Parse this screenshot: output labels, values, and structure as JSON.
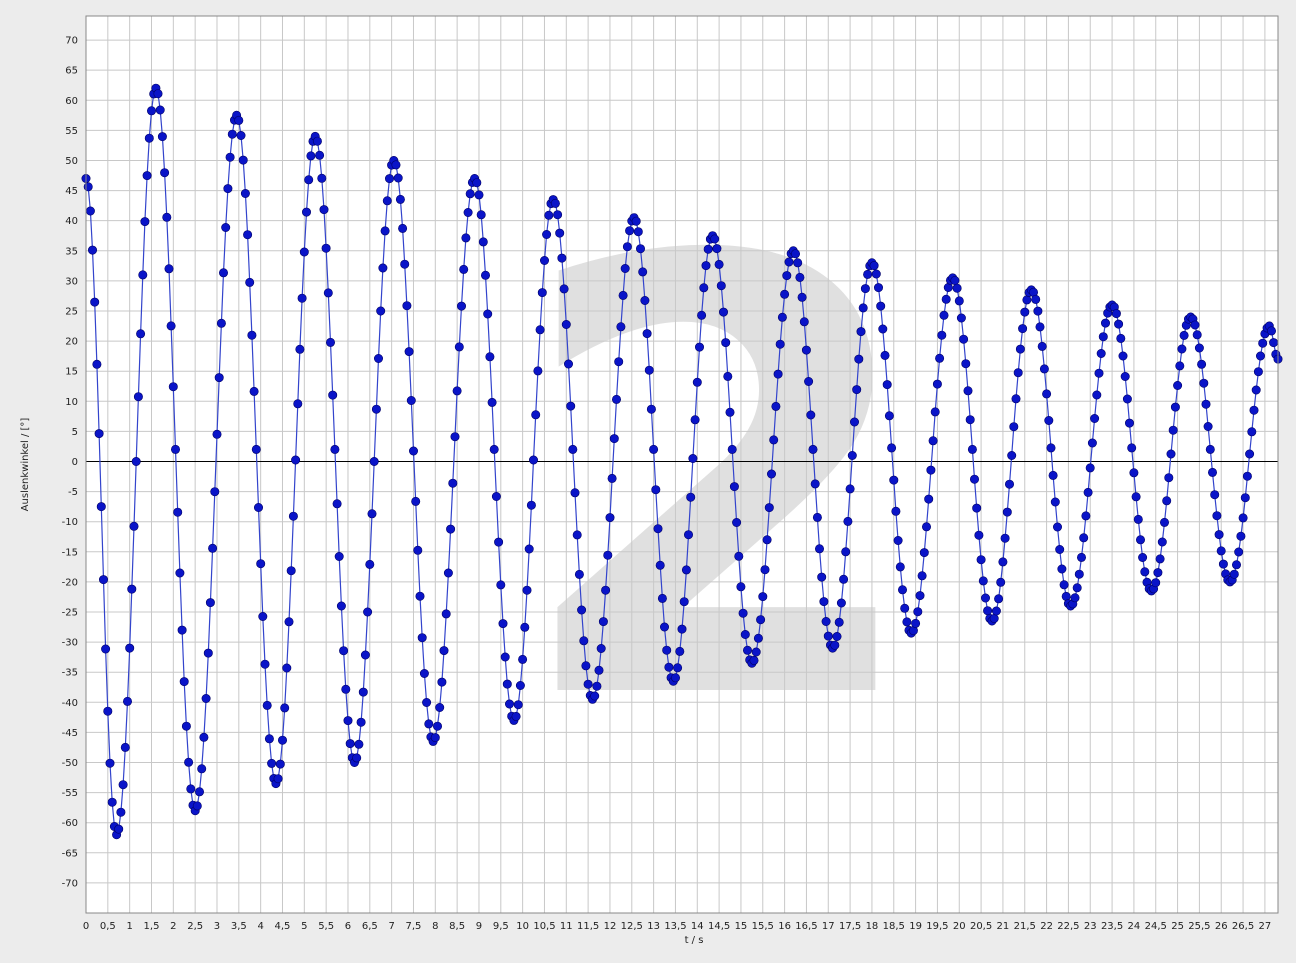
{
  "chart_data": {
    "type": "scatter",
    "title": "",
    "xlabel": "t / s",
    "ylabel": "Auslenkwinkel / [°]",
    "watermark": "2",
    "xlim": [
      0,
      27.3
    ],
    "ylim": [
      -75,
      74
    ],
    "x_tick_labels": [
      "0",
      "0,5",
      "1",
      "1,5",
      "2",
      "2,5",
      "3",
      "3,5",
      "4",
      "4,5",
      "5",
      "5,5",
      "6",
      "6,5",
      "7",
      "7,5",
      "8",
      "8,5",
      "9",
      "9,5",
      "10",
      "10,5",
      "11",
      "11,5",
      "12",
      "12,5",
      "13",
      "13,5",
      "14",
      "14,5",
      "15",
      "15,5",
      "16",
      "16,5",
      "17",
      "17,5",
      "18",
      "18,5",
      "19",
      "19,5",
      "20",
      "20,5",
      "21",
      "21,5",
      "22",
      "22,5",
      "23",
      "23,5",
      "24",
      "24,5",
      "25",
      "25,5",
      "26",
      "26,5",
      "27"
    ],
    "y_tick_labels": [
      "70",
      "65",
      "60",
      "55",
      "50",
      "45",
      "40",
      "35",
      "30",
      "25",
      "20",
      "15",
      "10",
      "5",
      "0",
      "-5",
      "-10",
      "-15",
      "-20",
      "-25",
      "-30",
      "-35",
      "-40",
      "-45",
      "-50",
      "-55",
      "-60",
      "-65",
      "-70"
    ],
    "grid": true,
    "legend": "none",
    "series": [
      {
        "color": "#0000cc",
        "line_color": "#3344cc",
        "marker_color": "#0a14c8",
        "sampling_interval_s": 0.05,
        "model": {
          "description": "damped oscillation fitted to extrema",
          "offset": 0.5,
          "period": 1.82,
          "phase_s": 0.0,
          "amp_start": 61.5,
          "amp_end": 21.0,
          "t_end": 27.3
        },
        "extrema": [
          {
            "x": 0.0,
            "y": 47
          },
          {
            "x": 0.7,
            "y": -62
          },
          {
            "x": 1.6,
            "y": 62
          },
          {
            "x": 2.5,
            "y": -58
          },
          {
            "x": 3.45,
            "y": 57.5
          },
          {
            "x": 4.35,
            "y": -53.5
          },
          {
            "x": 5.25,
            "y": 54
          },
          {
            "x": 6.15,
            "y": -50
          },
          {
            "x": 7.05,
            "y": 50
          },
          {
            "x": 7.95,
            "y": -46.5
          },
          {
            "x": 8.9,
            "y": 47
          },
          {
            "x": 9.8,
            "y": -43
          },
          {
            "x": 10.7,
            "y": 43.5
          },
          {
            "x": 11.6,
            "y": -39.5
          },
          {
            "x": 12.55,
            "y": 40.5
          },
          {
            "x": 13.45,
            "y": -36.5
          },
          {
            "x": 14.35,
            "y": 37.5
          },
          {
            "x": 15.25,
            "y": -33.5
          },
          {
            "x": 16.2,
            "y": 35
          },
          {
            "x": 17.1,
            "y": -31
          },
          {
            "x": 18.0,
            "y": 33
          },
          {
            "x": 18.9,
            "y": -28.5
          },
          {
            "x": 19.85,
            "y": 30.5
          },
          {
            "x": 20.75,
            "y": -26.5
          },
          {
            "x": 21.65,
            "y": 28.5
          },
          {
            "x": 22.55,
            "y": -24
          },
          {
            "x": 23.5,
            "y": 26
          },
          {
            "x": 24.4,
            "y": -21.5
          },
          {
            "x": 25.3,
            "y": 24
          },
          {
            "x": 26.2,
            "y": -20
          },
          {
            "x": 27.1,
            "y": 22.5
          },
          {
            "x": 27.3,
            "y": 17
          }
        ]
      }
    ]
  }
}
